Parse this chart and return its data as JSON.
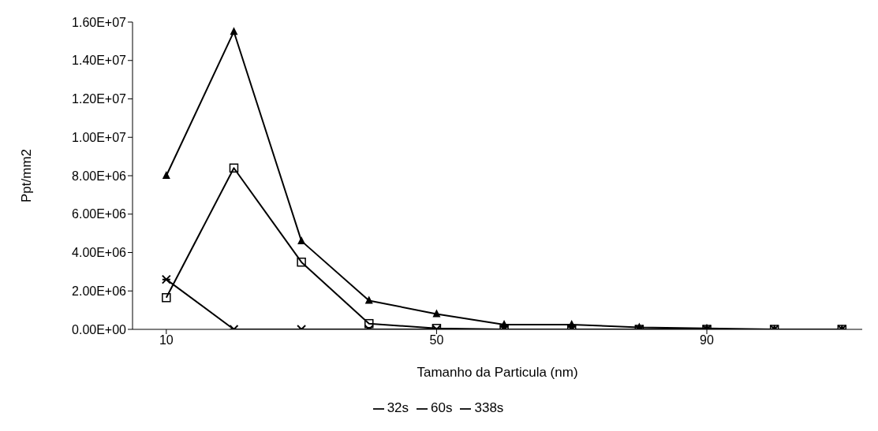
{
  "chart_data": {
    "type": "line",
    "xlabel": "Tamanho da Particula (nm)",
    "ylabel": "Ppt/mm2",
    "x": [
      10,
      20,
      30,
      40,
      50,
      60,
      70,
      80,
      90,
      100,
      110
    ],
    "xlim": [
      5,
      113
    ],
    "xticks": [
      10,
      50,
      90
    ],
    "ylim": [
      0,
      16000000
    ],
    "yticks": [
      {
        "value": 0,
        "label": "0.00E+00"
      },
      {
        "value": 2000000,
        "label": "2.00E+06"
      },
      {
        "value": 4000000,
        "label": "4.00E+06"
      },
      {
        "value": 6000000,
        "label": "6.00E+06"
      },
      {
        "value": 8000000,
        "label": "8.00E+06"
      },
      {
        "value": 10000000,
        "label": "1.00E+07"
      },
      {
        "value": 12000000,
        "label": "1.20E+07"
      },
      {
        "value": 14000000,
        "label": "1.40E+07"
      },
      {
        "value": 16000000,
        "label": "1.60E+07"
      }
    ],
    "grid": false,
    "legend": "bottom",
    "line_style": "solid",
    "series": [
      {
        "name": "32s",
        "color": "#000000",
        "marker": "triangle",
        "values": [
          8000000,
          15500000,
          4600000,
          1500000,
          800000,
          250000,
          250000,
          100000,
          50000,
          0,
          0
        ]
      },
      {
        "name": "60s",
        "color": "#000000",
        "marker": "square",
        "values": [
          1650000,
          8400000,
          3500000,
          300000,
          50000,
          0,
          0,
          0,
          0,
          0,
          0
        ]
      },
      {
        "name": "338s",
        "color": "#000000",
        "marker": "cross",
        "values": [
          2600000,
          0,
          0,
          0,
          0,
          0,
          0,
          0,
          0,
          0,
          0
        ]
      }
    ]
  }
}
